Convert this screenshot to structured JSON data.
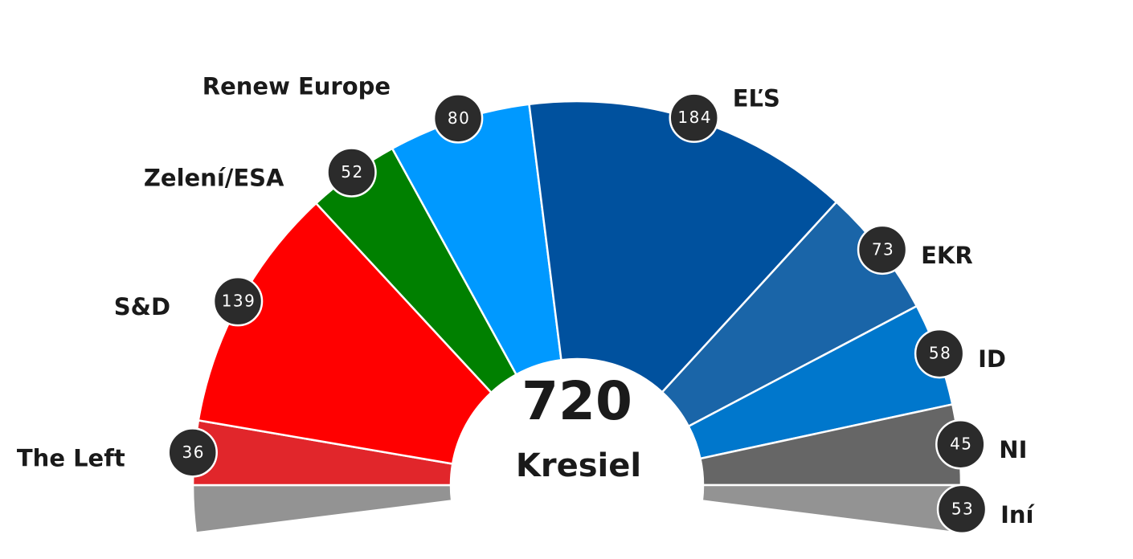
{
  "chart_data": {
    "type": "parliament",
    "categories": [
      "The Left",
      "S&D",
      "Zelení/ESA",
      "Renew Europe",
      "EĽS",
      "EKR",
      "ID",
      "NI",
      "Iní"
    ],
    "values": [
      36,
      139,
      52,
      80,
      184,
      73,
      58,
      45,
      53
    ],
    "colors": [
      "#e1262b",
      "#ff0000",
      "#008000",
      "#0099ff",
      "#00519e",
      "#1a65a8",
      "#0077cc",
      "#666666",
      "#939393"
    ],
    "total": 720,
    "total_label": "Kresiel"
  }
}
